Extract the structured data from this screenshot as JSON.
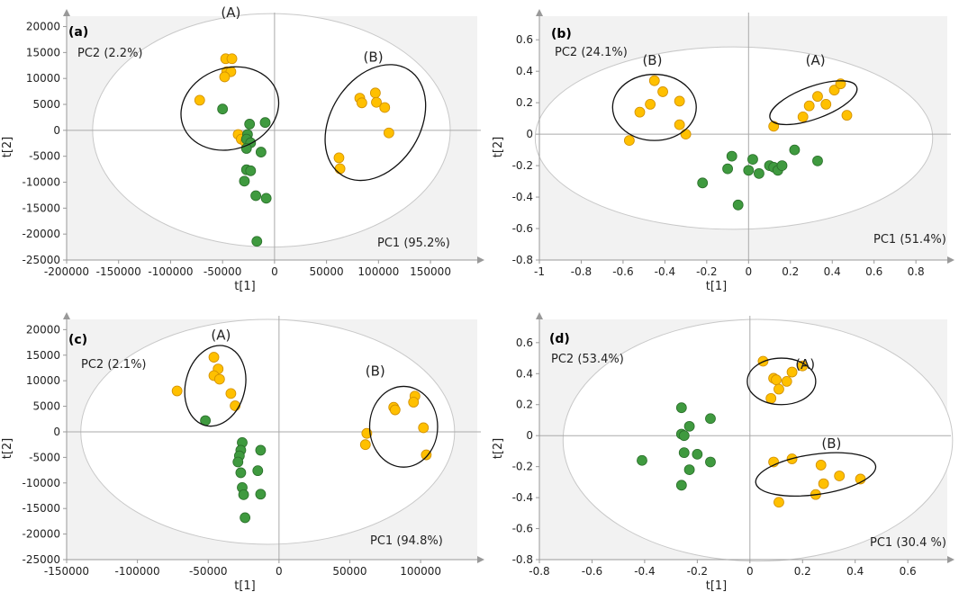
{
  "colors": {
    "score_ellipse_fill": "#ffffff",
    "score_ellipse_stroke": "#c8c8c8",
    "yellow_point": "#ffc000",
    "yellow_stroke": "#d08e00",
    "green_point": "#3f9a3f",
    "green_stroke": "#2a6e2a",
    "plot_background": "#f2f2f2",
    "axis": "#999999"
  },
  "chart_data": [
    {
      "type": "scatter",
      "panel_label": "(a)",
      "xlabel": "t[1]",
      "ylabel": "t[2]",
      "xlim": [
        -200000,
        195000
      ],
      "ylim": [
        -25000,
        22000
      ],
      "xticks": [
        -200000,
        -150000,
        -100000,
        -50000,
        0,
        50000,
        100000,
        150000
      ],
      "yticks": [
        -25000,
        -20000,
        -15000,
        -10000,
        -5000,
        0,
        5000,
        10000,
        15000,
        20000
      ],
      "pc1_label": "PC1 (95.2%)",
      "pc2_label": "PC2 (2.2%)",
      "score_ellipse": {
        "cx": -3000,
        "cy": 0,
        "rx": 172000,
        "ry": 22500
      },
      "group_ellipses": [
        {
          "label": "(A)",
          "cx": -43000,
          "cy": 4200,
          "rx": 39000,
          "ry": 9600,
          "angle_deg": 70,
          "label_x": -42000,
          "label_y": 21800
        },
        {
          "label": "(B)",
          "cx": 97000,
          "cy": 1500,
          "rx": 60000,
          "ry": 8600,
          "angle_deg": -58,
          "label_x": 95000,
          "label_y": 13200
        }
      ],
      "series": [
        {
          "color": "yellow",
          "points": [
            [
              -47000,
              13800
            ],
            [
              -41000,
              13800
            ],
            [
              -46000,
              11300
            ],
            [
              -42000,
              11300
            ],
            [
              -48000,
              10300
            ],
            [
              -72000,
              5800
            ],
            [
              -35000,
              -800
            ],
            [
              -32000,
              -1700
            ],
            [
              -28000,
              -2300
            ],
            [
              62000,
              -5300
            ],
            [
              63000,
              -7400
            ],
            [
              82000,
              6200
            ],
            [
              84000,
              5300
            ],
            [
              97000,
              7200
            ],
            [
              98000,
              5400
            ],
            [
              106000,
              4400
            ],
            [
              110000,
              -500
            ]
          ]
        },
        {
          "color": "green",
          "points": [
            [
              -50000,
              4100
            ],
            [
              -24000,
              1200
            ],
            [
              -9000,
              1500
            ],
            [
              -26000,
              -800
            ],
            [
              -27000,
              -1700
            ],
            [
              -23000,
              -2400
            ],
            [
              -27000,
              -3500
            ],
            [
              -13000,
              -4200
            ],
            [
              -27000,
              -7600
            ],
            [
              -23000,
              -7800
            ],
            [
              -29000,
              -9800
            ],
            [
              -18000,
              -12600
            ],
            [
              -8000,
              -13100
            ],
            [
              -17000,
              -21400
            ]
          ]
        }
      ]
    },
    {
      "type": "scatter",
      "panel_label": "(b)",
      "xlabel": "t[1]",
      "ylabel": "t[2]",
      "xlim": [
        -1,
        0.95
      ],
      "ylim": [
        -0.8,
        0.75
      ],
      "xticks": [
        -1,
        -0.8,
        -0.6,
        -0.4,
        -0.2,
        0,
        0.2,
        0.4,
        0.6,
        0.8
      ],
      "yticks": [
        -0.8,
        -0.6,
        -0.4,
        -0.2,
        0,
        0.2,
        0.4,
        0.6
      ],
      "pc1_label": "PC1 (51.4%)",
      "pc2_label": "PC2  (24.1%)",
      "score_ellipse": {
        "cx": -0.07,
        "cy": -0.025,
        "rx": 0.95,
        "ry": 0.58
      },
      "group_ellipses": [
        {
          "label": "(B)",
          "cx": -0.45,
          "cy": 0.17,
          "rx": 0.2,
          "ry": 0.21,
          "angle_deg": 0,
          "label_x": -0.46,
          "label_y": 0.44
        },
        {
          "label": "(A)",
          "cx": 0.31,
          "cy": 0.2,
          "rx": 0.22,
          "ry": 0.08,
          "angle_deg": -20,
          "label_x": 0.32,
          "label_y": 0.44
        }
      ],
      "series": [
        {
          "color": "yellow",
          "points": [
            [
              -0.57,
              -0.04
            ],
            [
              -0.52,
              0.14
            ],
            [
              -0.47,
              0.19
            ],
            [
              -0.45,
              0.34
            ],
            [
              -0.41,
              0.27
            ],
            [
              -0.33,
              0.21
            ],
            [
              -0.33,
              0.06
            ],
            [
              -0.3,
              0.0
            ],
            [
              0.12,
              0.05
            ],
            [
              0.26,
              0.11
            ],
            [
              0.29,
              0.18
            ],
            [
              0.33,
              0.24
            ],
            [
              0.37,
              0.19
            ],
            [
              0.41,
              0.28
            ],
            [
              0.44,
              0.32
            ],
            [
              0.47,
              0.12
            ]
          ]
        },
        {
          "color": "green",
          "points": [
            [
              -0.22,
              -0.31
            ],
            [
              -0.08,
              -0.14
            ],
            [
              -0.1,
              -0.22
            ],
            [
              -0.05,
              -0.45
            ],
            [
              0.0,
              -0.23
            ],
            [
              0.02,
              -0.16
            ],
            [
              0.05,
              -0.25
            ],
            [
              0.1,
              -0.2
            ],
            [
              0.12,
              -0.21
            ],
            [
              0.14,
              -0.23
            ],
            [
              0.16,
              -0.2
            ],
            [
              0.22,
              -0.1
            ],
            [
              0.33,
              -0.17
            ]
          ]
        }
      ]
    },
    {
      "type": "scatter",
      "panel_label": "(c)",
      "xlabel": "t[1]",
      "ylabel": "t[2]",
      "xlim": [
        -150000,
        140000
      ],
      "ylim": [
        -25000,
        22000
      ],
      "xticks": [
        -150000,
        -100000,
        -50000,
        0,
        50000,
        100000
      ],
      "yticks": [
        -25000,
        -20000,
        -15000,
        -10000,
        -5000,
        0,
        5000,
        10000,
        15000,
        20000
      ],
      "pc1_label": "PC1 (94.8%)",
      "pc2_label": "PC2 (2.1%)",
      "score_ellipse": {
        "cx": -8000,
        "cy": 0,
        "rx": 132000,
        "ry": 22000
      },
      "group_ellipses": [
        {
          "label": "(A)",
          "cx": -45000,
          "cy": 9000,
          "rx": 21000,
          "ry": 8000,
          "angle_deg": 14,
          "label_x": -41000,
          "label_y": 18000
        },
        {
          "label": "(B)",
          "cx": 88000,
          "cy": 1000,
          "rx": 24000,
          "ry": 7900,
          "angle_deg": 0,
          "label_x": 68000,
          "label_y": 11000
        }
      ],
      "series": [
        {
          "color": "yellow",
          "points": [
            [
              -72000,
              8000
            ],
            [
              -46000,
              14600
            ],
            [
              -43000,
              12300
            ],
            [
              -46000,
              11000
            ],
            [
              -42000,
              10300
            ],
            [
              -34000,
              7500
            ],
            [
              -31000,
              5100
            ],
            [
              62000,
              -300
            ],
            [
              61000,
              -2500
            ],
            [
              81000,
              4800
            ],
            [
              82000,
              4300
            ],
            [
              96000,
              7000
            ],
            [
              95000,
              5800
            ],
            [
              102000,
              800
            ],
            [
              104000,
              -4500
            ]
          ]
        },
        {
          "color": "green",
          "points": [
            [
              -52000,
              2200
            ],
            [
              -26000,
              -2100
            ],
            [
              -27000,
              -3600
            ],
            [
              -28000,
              -4700
            ],
            [
              -29000,
              -5900
            ],
            [
              -13000,
              -3600
            ],
            [
              -27000,
              -8000
            ],
            [
              -15000,
              -7600
            ],
            [
              -26000,
              -10900
            ],
            [
              -13000,
              -12200
            ],
            [
              -25000,
              -12300
            ],
            [
              -24000,
              -16800
            ]
          ]
        }
      ]
    },
    {
      "type": "scatter",
      "panel_label": "(d)",
      "xlabel": "t[1]",
      "ylabel": "t[2]",
      "xlim": [
        -0.8,
        0.75
      ],
      "ylim": [
        -0.8,
        0.75
      ],
      "xticks": [
        -0.8,
        -0.6,
        -0.4,
        -0.2,
        0,
        0.2,
        0.4,
        0.6
      ],
      "yticks": [
        -0.8,
        -0.6,
        -0.4,
        -0.2,
        0,
        0.2,
        0.4,
        0.6
      ],
      "pc1_label": "PC1 (30.4 %)",
      "pc2_label": "PC2  (53.4%)",
      "score_ellipse": {
        "cx": 0.03,
        "cy": -0.03,
        "rx": 0.74,
        "ry": 0.78
      },
      "group_ellipses": [
        {
          "label": "(A)",
          "cx": 0.12,
          "cy": 0.35,
          "rx": 0.13,
          "ry": 0.15,
          "angle_deg": 0,
          "label_x": 0.21,
          "label_y": 0.43
        },
        {
          "label": "(B)",
          "cx": 0.25,
          "cy": -0.25,
          "rx": 0.23,
          "ry": 0.13,
          "angle_deg": -8,
          "label_x": 0.31,
          "label_y": -0.08
        }
      ],
      "series": [
        {
          "color": "yellow",
          "points": [
            [
              0.05,
              0.48
            ],
            [
              0.09,
              0.37
            ],
            [
              0.1,
              0.36
            ],
            [
              0.11,
              0.3
            ],
            [
              0.08,
              0.24
            ],
            [
              0.14,
              0.35
            ],
            [
              0.16,
              0.41
            ],
            [
              0.2,
              0.45
            ],
            [
              0.09,
              -0.17
            ],
            [
              0.11,
              -0.43
            ],
            [
              0.16,
              -0.15
            ],
            [
              0.25,
              -0.38
            ],
            [
              0.27,
              -0.19
            ],
            [
              0.28,
              -0.31
            ],
            [
              0.34,
              -0.26
            ],
            [
              0.42,
              -0.28
            ]
          ]
        },
        {
          "color": "green",
          "points": [
            [
              -0.41,
              -0.16
            ],
            [
              -0.26,
              0.18
            ],
            [
              -0.26,
              0.01
            ],
            [
              -0.25,
              0.0
            ],
            [
              -0.23,
              0.06
            ],
            [
              -0.25,
              -0.11
            ],
            [
              -0.2,
              -0.12
            ],
            [
              -0.23,
              -0.22
            ],
            [
              -0.26,
              -0.32
            ],
            [
              -0.15,
              0.11
            ],
            [
              -0.15,
              -0.17
            ]
          ]
        }
      ]
    }
  ]
}
